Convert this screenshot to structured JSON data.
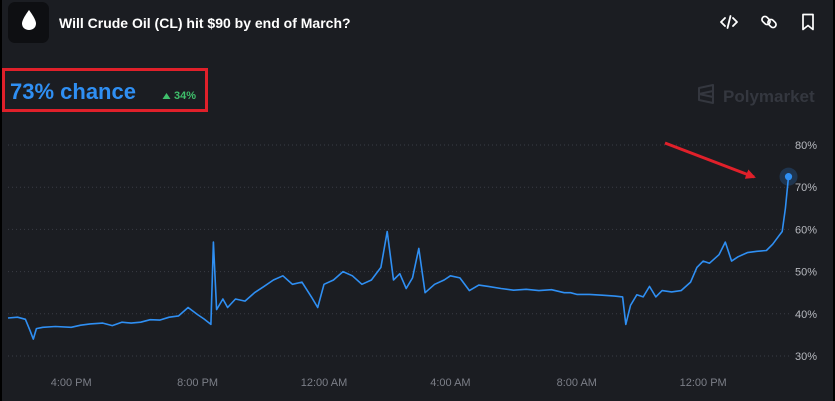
{
  "header": {
    "title": "Will Crude Oil (CL) hit $90 by end of March?",
    "logo_icon": "oil-drop-icon",
    "actions": [
      {
        "icon": "code-embed-icon"
      },
      {
        "icon": "link-icon"
      },
      {
        "icon": "bookmark-icon"
      }
    ]
  },
  "chance": {
    "label": "73% chance",
    "change": "34%",
    "change_direction": "up"
  },
  "watermark": "Polymarket",
  "colors": {
    "accent": "#2f8ff3",
    "positive": "#3fbf6b",
    "highlight": "#e0202a",
    "background": "#1b1d22"
  },
  "chart_data": {
    "type": "line",
    "y_ticks": [
      "30%",
      "40%",
      "50%",
      "60%",
      "70%",
      "80%"
    ],
    "x_ticks": [
      "4:00 PM",
      "8:00 PM",
      "12:00 AM",
      "4:00 AM",
      "8:00 AM",
      "12:00 PM"
    ],
    "ylim": [
      30,
      80
    ],
    "grid": true,
    "series": [
      {
        "values": [
          [
            0,
            39
          ],
          [
            0.3,
            39.2
          ],
          [
            0.55,
            38.7
          ],
          [
            0.7,
            36
          ],
          [
            0.8,
            34
          ],
          [
            0.9,
            36.5
          ],
          [
            1.1,
            36.8
          ],
          [
            1.5,
            37
          ],
          [
            2,
            36.8
          ],
          [
            2.3,
            37.3
          ],
          [
            2.6,
            37.6
          ],
          [
            3,
            37.8
          ],
          [
            3.3,
            37.2
          ],
          [
            3.6,
            38
          ],
          [
            3.9,
            37.8
          ],
          [
            4.2,
            38
          ],
          [
            4.5,
            38.6
          ],
          [
            4.8,
            38.5
          ],
          [
            5.1,
            39.2
          ],
          [
            5.4,
            39.5
          ],
          [
            5.7,
            41.5
          ],
          [
            6,
            39.8
          ],
          [
            6.2,
            38.8
          ],
          [
            6.42,
            37.5
          ],
          [
            6.5,
            57
          ],
          [
            6.6,
            41
          ],
          [
            6.8,
            43.5
          ],
          [
            6.95,
            41.5
          ],
          [
            7.2,
            43.5
          ],
          [
            7.5,
            43
          ],
          [
            7.8,
            45
          ],
          [
            8.1,
            46.5
          ],
          [
            8.4,
            48
          ],
          [
            8.7,
            49
          ],
          [
            9,
            47
          ],
          [
            9.3,
            47.5
          ],
          [
            9.6,
            44
          ],
          [
            9.8,
            41.5
          ],
          [
            10,
            47
          ],
          [
            10.3,
            48
          ],
          [
            10.6,
            50
          ],
          [
            10.9,
            49
          ],
          [
            11.2,
            47
          ],
          [
            11.5,
            48
          ],
          [
            11.8,
            51
          ],
          [
            12,
            59.5
          ],
          [
            12.2,
            48
          ],
          [
            12.4,
            49.5
          ],
          [
            12.6,
            46
          ],
          [
            12.8,
            48.5
          ],
          [
            13,
            55.5
          ],
          [
            13.2,
            45
          ],
          [
            13.5,
            47
          ],
          [
            13.8,
            48
          ],
          [
            14,
            49
          ],
          [
            14.3,
            48.5
          ],
          [
            14.6,
            45.5
          ],
          [
            14.9,
            46.8
          ],
          [
            15.2,
            46.5
          ],
          [
            15.6,
            46
          ],
          [
            16,
            45.6
          ],
          [
            16.4,
            45.8
          ],
          [
            16.8,
            45.5
          ],
          [
            17.2,
            45.7
          ],
          [
            17.6,
            45
          ],
          [
            17.8,
            45
          ],
          [
            18,
            44.6
          ],
          [
            18.4,
            44.6
          ],
          [
            18.8,
            44.4
          ],
          [
            19.2,
            44.2
          ],
          [
            19.45,
            44
          ],
          [
            19.55,
            37.5
          ],
          [
            19.7,
            42
          ],
          [
            19.9,
            44.5
          ],
          [
            20.1,
            44
          ],
          [
            20.3,
            46.5
          ],
          [
            20.5,
            44
          ],
          [
            20.7,
            45.5
          ],
          [
            21,
            45.2
          ],
          [
            21.3,
            45.5
          ],
          [
            21.6,
            47.5
          ],
          [
            21.8,
            51
          ],
          [
            22,
            52.5
          ],
          [
            22.2,
            52
          ],
          [
            22.5,
            54
          ],
          [
            22.7,
            57
          ],
          [
            22.9,
            52.5
          ],
          [
            23.1,
            53.5
          ],
          [
            23.4,
            54.5
          ],
          [
            23.7,
            54.8
          ],
          [
            24,
            55
          ],
          [
            24.2,
            56.5
          ],
          [
            24.4,
            58.5
          ],
          [
            24.5,
            59.5
          ],
          [
            24.6,
            65
          ],
          [
            24.7,
            72.5
          ]
        ]
      }
    ]
  }
}
